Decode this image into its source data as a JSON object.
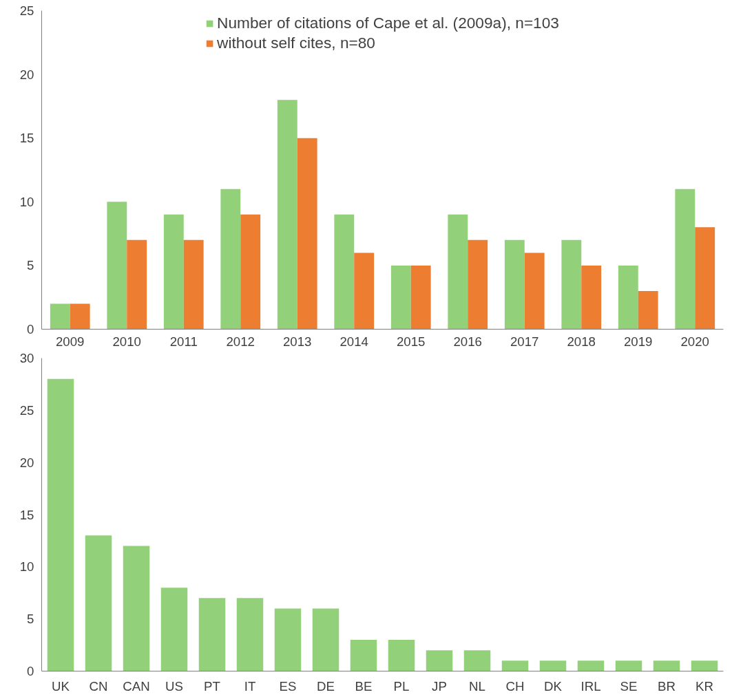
{
  "chart_data": [
    {
      "type": "bar",
      "categories": [
        "2009",
        "2010",
        "2011",
        "2012",
        "2013",
        "2014",
        "2015",
        "2016",
        "2017",
        "2018",
        "2019",
        "2020"
      ],
      "series": [
        {
          "name": "Number of citations of Cape et al. (2009a), n=103",
          "color": "#92d07a",
          "values": [
            2,
            10,
            9,
            11,
            18,
            9,
            5,
            9,
            7,
            7,
            5,
            11
          ]
        },
        {
          "name": "without self cites, n=80",
          "color": "#ed7d31",
          "values": [
            2,
            7,
            7,
            9,
            15,
            6,
            5,
            7,
            6,
            5,
            3,
            8
          ]
        }
      ],
      "ylim": [
        0,
        25
      ],
      "yticks": [
        0,
        5,
        10,
        15,
        20,
        25
      ],
      "grid": false,
      "legend": "top"
    },
    {
      "type": "bar",
      "categories": [
        "UK",
        "CN",
        "CAN",
        "US",
        "PT",
        "IT",
        "ES",
        "DE",
        "BE",
        "PL",
        "JP",
        "NL",
        "CH",
        "DK",
        "IRL",
        "SE",
        "BR",
        "KR"
      ],
      "series": [
        {
          "color": "#92d07a",
          "values": [
            28,
            13,
            12,
            8,
            7,
            7,
            6,
            6,
            3,
            3,
            2,
            2,
            1,
            1,
            1,
            1,
            1,
            1
          ]
        }
      ],
      "ylim": [
        0,
        30
      ],
      "yticks": [
        0,
        5,
        10,
        15,
        20,
        25,
        30
      ],
      "grid": false,
      "legend": false
    }
  ]
}
